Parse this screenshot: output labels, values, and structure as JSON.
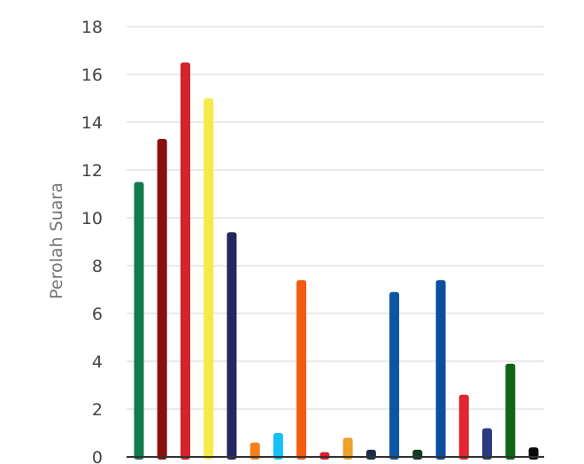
{
  "chart_data": {
    "type": "bar",
    "title": "",
    "xlabel": "",
    "ylabel": "Perolah Suara",
    "ylim": [
      0,
      18
    ],
    "yticks": [
      0,
      2,
      4,
      6,
      8,
      10,
      12,
      14,
      16,
      18
    ],
    "grid": true,
    "legend": "none",
    "bars": [
      {
        "value": 11.5,
        "color": "#127a4d"
      },
      {
        "value": 13.3,
        "color": "#8b0f0f"
      },
      {
        "value": 16.5,
        "color": "#d3232b"
      },
      {
        "value": 15.0,
        "color": "#f6ea4a"
      },
      {
        "value": 9.4,
        "color": "#25285e"
      },
      {
        "value": 0.6,
        "color": "#f57f18"
      },
      {
        "value": 1.0,
        "color": "#15c1f5"
      },
      {
        "value": 7.4,
        "color": "#f25b11"
      },
      {
        "value": 0.2,
        "color": "#e21c24"
      },
      {
        "value": 0.8,
        "color": "#eba12a"
      },
      {
        "value": 0.3,
        "color": "#1b2f4a"
      },
      {
        "value": 6.9,
        "color": "#0c55a4"
      },
      {
        "value": 0.3,
        "color": "#0f3d22"
      },
      {
        "value": 7.4,
        "color": "#0a4f9c"
      },
      {
        "value": 2.6,
        "color": "#e22530"
      },
      {
        "value": 1.2,
        "color": "#2a3b80"
      },
      {
        "value": 3.9,
        "color": "#0f6614"
      },
      {
        "value": 0.4,
        "color": "#0a0a0a"
      }
    ]
  },
  "style": {
    "grid_color": "#e3e3e3",
    "axis_color": "#333333",
    "background": "#ffffff"
  }
}
